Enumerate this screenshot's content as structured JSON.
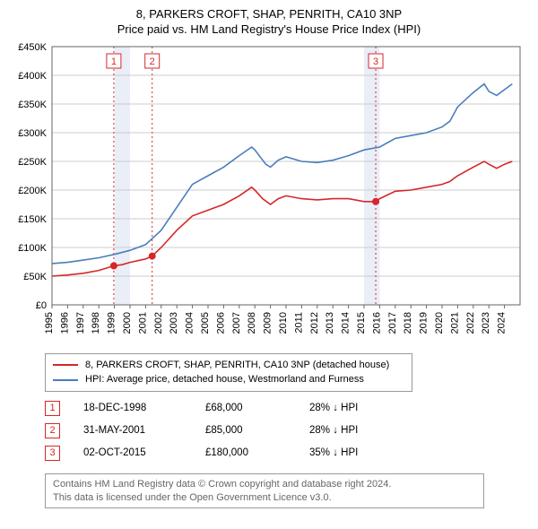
{
  "title_line1": "8, PARKERS CROFT, SHAP, PENRITH, CA10 3NP",
  "title_line2": "Price paid vs. HM Land Registry's House Price Index (HPI)",
  "chart": {
    "type": "line",
    "background_color": "#ffffff",
    "grid_color": "#cccccc",
    "band_color": "#e9eef7",
    "axis_color": "#666666",
    "xlim": [
      1995,
      2025
    ],
    "ylim": [
      0,
      450000
    ],
    "ytick_step": 50000,
    "yticks": [
      "£0",
      "£50K",
      "£100K",
      "£150K",
      "£200K",
      "£250K",
      "£300K",
      "£350K",
      "£400K",
      "£450K"
    ],
    "xticks": [
      1995,
      1996,
      1997,
      1998,
      1999,
      2000,
      2001,
      2002,
      2003,
      2004,
      2005,
      2006,
      2007,
      2008,
      2009,
      2010,
      2011,
      2012,
      2013,
      2014,
      2015,
      2016,
      2017,
      2018,
      2019,
      2020,
      2021,
      2022,
      2023,
      2024
    ],
    "property_series": {
      "color": "#d62728",
      "line_width": 1.6,
      "data": [
        [
          1995,
          50000
        ],
        [
          1996,
          52000
        ],
        [
          1997,
          55000
        ],
        [
          1998,
          60000
        ],
        [
          1998.96,
          68000
        ],
        [
          1999.5,
          70000
        ],
        [
          2000,
          74000
        ],
        [
          2001,
          80000
        ],
        [
          2001.42,
          85000
        ],
        [
          2002,
          100000
        ],
        [
          2003,
          130000
        ],
        [
          2004,
          155000
        ],
        [
          2005,
          165000
        ],
        [
          2006,
          175000
        ],
        [
          2007,
          190000
        ],
        [
          2007.8,
          205000
        ],
        [
          2008,
          200000
        ],
        [
          2008.5,
          185000
        ],
        [
          2009,
          175000
        ],
        [
          2009.5,
          185000
        ],
        [
          2010,
          190000
        ],
        [
          2011,
          185000
        ],
        [
          2012,
          183000
        ],
        [
          2013,
          185000
        ],
        [
          2014,
          185000
        ],
        [
          2015,
          180000
        ],
        [
          2015.75,
          180000
        ],
        [
          2016,
          185000
        ],
        [
          2017,
          198000
        ],
        [
          2018,
          200000
        ],
        [
          2019,
          205000
        ],
        [
          2020,
          210000
        ],
        [
          2020.5,
          215000
        ],
        [
          2021,
          225000
        ],
        [
          2022,
          240000
        ],
        [
          2022.7,
          250000
        ],
        [
          2023,
          245000
        ],
        [
          2023.5,
          238000
        ],
        [
          2024,
          245000
        ],
        [
          2024.5,
          250000
        ]
      ]
    },
    "hpi_series": {
      "color": "#4a7ebb",
      "line_width": 1.6,
      "data": [
        [
          1995,
          72000
        ],
        [
          1996,
          74000
        ],
        [
          1997,
          78000
        ],
        [
          1998,
          82000
        ],
        [
          1999,
          88000
        ],
        [
          2000,
          95000
        ],
        [
          2001,
          105000
        ],
        [
          2002,
          130000
        ],
        [
          2003,
          170000
        ],
        [
          2004,
          210000
        ],
        [
          2005,
          225000
        ],
        [
          2006,
          240000
        ],
        [
          2007,
          260000
        ],
        [
          2007.8,
          275000
        ],
        [
          2008,
          270000
        ],
        [
          2008.7,
          245000
        ],
        [
          2009,
          240000
        ],
        [
          2009.5,
          252000
        ],
        [
          2010,
          258000
        ],
        [
          2011,
          250000
        ],
        [
          2012,
          248000
        ],
        [
          2013,
          252000
        ],
        [
          2014,
          260000
        ],
        [
          2015,
          270000
        ],
        [
          2016,
          275000
        ],
        [
          2017,
          290000
        ],
        [
          2018,
          295000
        ],
        [
          2019,
          300000
        ],
        [
          2020,
          310000
        ],
        [
          2020.5,
          320000
        ],
        [
          2021,
          345000
        ],
        [
          2022,
          370000
        ],
        [
          2022.7,
          385000
        ],
        [
          2023,
          372000
        ],
        [
          2023.5,
          365000
        ],
        [
          2024,
          375000
        ],
        [
          2024.5,
          385000
        ]
      ]
    },
    "sale_markers": [
      {
        "n": "1",
        "x": 1998.96,
        "y": 68000,
        "color": "#d62728"
      },
      {
        "n": "2",
        "x": 2001.42,
        "y": 85000,
        "color": "#d62728"
      },
      {
        "n": "3",
        "x": 2015.75,
        "y": 180000,
        "color": "#d62728"
      }
    ],
    "shaded_bands": [
      [
        1999.0,
        2000.0
      ],
      [
        2015.0,
        2016.0
      ]
    ]
  },
  "legend": {
    "items": [
      {
        "color": "#d62728",
        "label": "8, PARKERS CROFT, SHAP, PENRITH, CA10 3NP (detached house)"
      },
      {
        "color": "#4a7ebb",
        "label": "HPI: Average price, detached house, Westmorland and Furness"
      }
    ]
  },
  "marker_table": {
    "rows": [
      {
        "n": "1",
        "date": "18-DEC-1998",
        "price": "£68,000",
        "diff": "28% ↓ HPI",
        "border_color": "#d62728"
      },
      {
        "n": "2",
        "date": "31-MAY-2001",
        "price": "£85,000",
        "diff": "28% ↓ HPI",
        "border_color": "#d62728"
      },
      {
        "n": "3",
        "date": "02-OCT-2015",
        "price": "£180,000",
        "diff": "35% ↓ HPI",
        "border_color": "#d62728"
      }
    ]
  },
  "footer": {
    "line1": "Contains HM Land Registry data © Crown copyright and database right 2024.",
    "line2": "This data is licensed under the Open Government Licence v3.0."
  }
}
